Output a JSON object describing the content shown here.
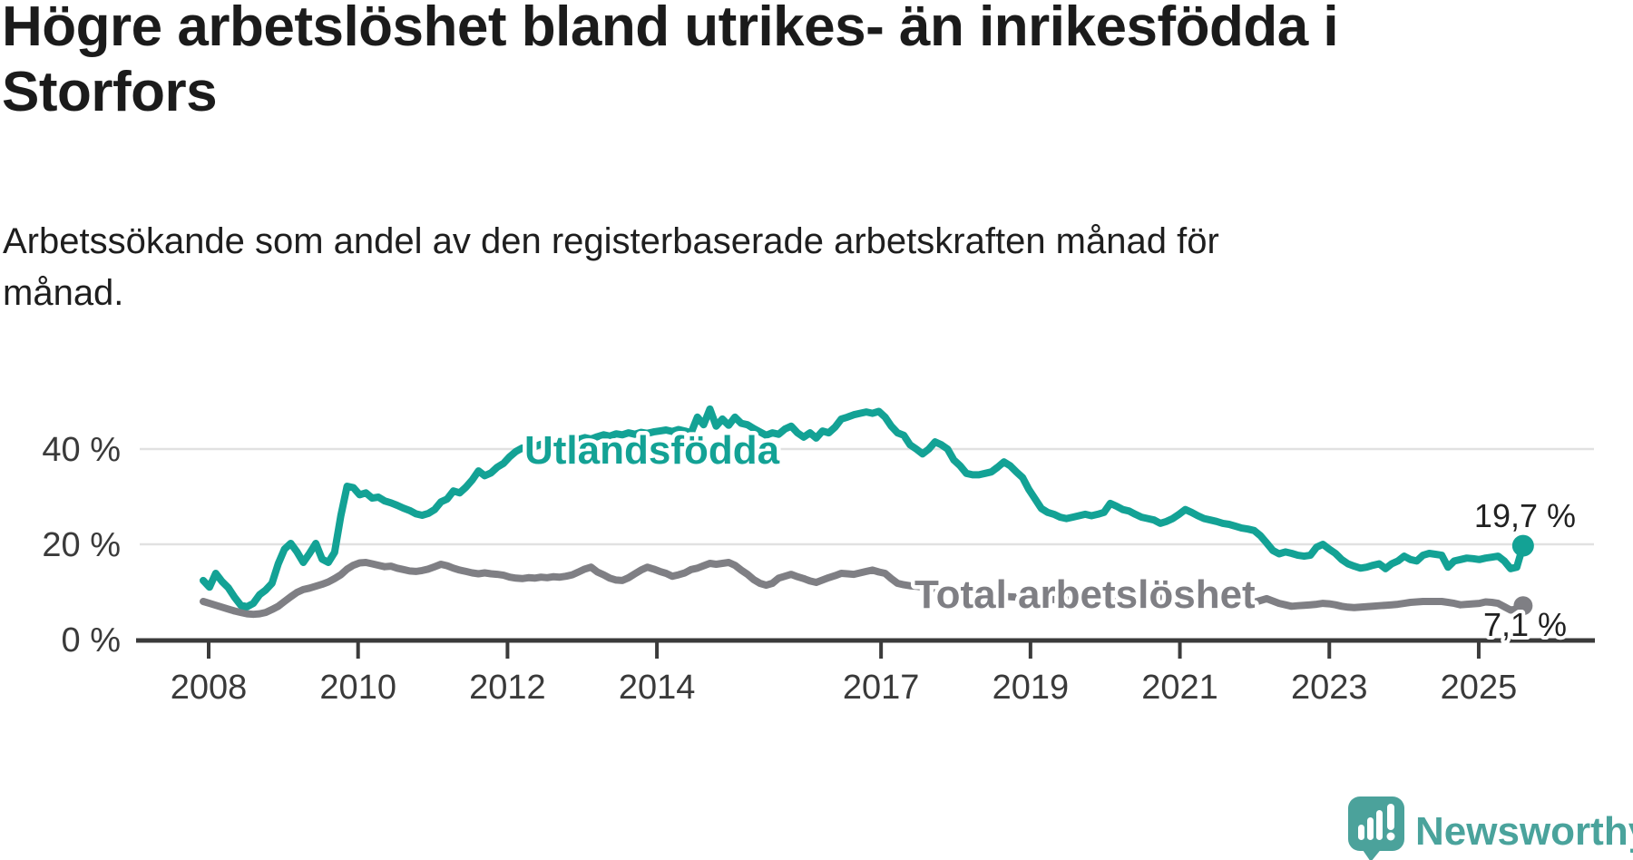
{
  "header": {
    "title": "Högre arbetslöshet bland utrikes- än inrikesfödda i Storfors",
    "subtitle": "Arbetssökande som andel av den registerbaserade arbetskraften månad för månad."
  },
  "branding": {
    "logo_text": "Newsworthy",
    "logo_icon": "bar-chart-speech-bubble-icon",
    "logo_color": "#4AA39C"
  },
  "colors": {
    "background": "#FFFFFF",
    "title_text": "#1B1B1B",
    "axis_text": "#3A3A3A",
    "axis_line": "#3B3B3B",
    "gridline": "#E1E1E1",
    "series_foreign_born": "#13A295",
    "series_total": "#7F7F84"
  },
  "chart_data": {
    "type": "line",
    "unit": "%",
    "grid": "horizontal-only",
    "period": {
      "start": "2008-01",
      "end": "2025-08",
      "frequency": "monthly"
    },
    "ylim": [
      0,
      50
    ],
    "y_axis": {
      "ticks": [
        {
          "label": "0 %",
          "value": 0
        },
        {
          "label": "20 %",
          "value": 20
        },
        {
          "label": "40 %",
          "value": 40
        }
      ]
    },
    "x_axis": {
      "ticks": [
        {
          "label": "2008",
          "year": 2008
        },
        {
          "label": "2010",
          "year": 2010
        },
        {
          "label": "2012",
          "year": 2012
        },
        {
          "label": "2014",
          "year": 2014
        },
        {
          "label": "2017",
          "year": 2017
        },
        {
          "label": "2019",
          "year": 2019
        },
        {
          "label": "2021",
          "year": 2021
        },
        {
          "label": "2023",
          "year": 2023
        },
        {
          "label": "2025",
          "year": 2025
        }
      ]
    },
    "series": [
      {
        "name": "Utlandsfödda",
        "color": "#13A295",
        "end_label": "19,7 %",
        "end_value": 19.7,
        "values": [
          12.4,
          11.0,
          13.9,
          12.2,
          10.9,
          8.9,
          7.2,
          6.9,
          7.6,
          9.4,
          10.4,
          11.8,
          15.9,
          19.0,
          20.2,
          18.4,
          16.2,
          18.1,
          20.2,
          16.9,
          16.2,
          18.3,
          26.0,
          32.2,
          31.9,
          30.4,
          30.8,
          29.7,
          29.9,
          29.1,
          28.7,
          28.2,
          27.6,
          27.1,
          26.4,
          26.1,
          26.5,
          27.3,
          28.9,
          29.5,
          31.2,
          30.8,
          32.0,
          33.5,
          35.4,
          34.4,
          35.0,
          36.2,
          37.0,
          38.4,
          39.5,
          40.2,
          40.0,
          40.5,
          41.0,
          40.6,
          41.2,
          41.6,
          41.3,
          41.8,
          42.0,
          42.4,
          42.1,
          42.6,
          43.0,
          42.7,
          43.2,
          43.0,
          43.4,
          43.1,
          43.5,
          43.3,
          43.6,
          43.8,
          44.0,
          43.7,
          44.1,
          43.8,
          43.4,
          46.7,
          45.1,
          48.4,
          44.8,
          46.3,
          45.0,
          46.7,
          45.4,
          45.1,
          44.3,
          43.6,
          42.9,
          43.4,
          43.1,
          44.2,
          44.8,
          43.4,
          42.5,
          43.4,
          42.3,
          43.8,
          43.4,
          44.6,
          46.3,
          46.7,
          47.2,
          47.5,
          47.8,
          47.5,
          47.9,
          46.7,
          44.8,
          43.4,
          42.9,
          40.9,
          40.0,
          39.0,
          40.0,
          41.5,
          40.9,
          40.0,
          37.7,
          36.5,
          34.9,
          34.6,
          34.6,
          34.9,
          35.2,
          36.2,
          37.3,
          36.5,
          35.2,
          34.0,
          31.5,
          29.5,
          27.5,
          26.7,
          26.3,
          25.7,
          25.4,
          25.7,
          26.0,
          26.3,
          26.0,
          26.3,
          26.7,
          28.6,
          28.0,
          27.3,
          27.0,
          26.3,
          25.7,
          25.4,
          25.1,
          24.4,
          24.8,
          25.4,
          26.3,
          27.3,
          26.7,
          26.0,
          25.4,
          25.1,
          24.8,
          24.4,
          24.2,
          23.8,
          23.4,
          23.2,
          22.9,
          21.8,
          20.3,
          18.7,
          18.0,
          18.4,
          18.1,
          17.7,
          17.5,
          17.7,
          19.4,
          20.0,
          19.0,
          18.1,
          16.8,
          15.9,
          15.4,
          15.0,
          15.2,
          15.6,
          15.9,
          14.9,
          15.9,
          16.5,
          17.5,
          16.8,
          16.5,
          17.7,
          18.1,
          17.9,
          17.7,
          15.2,
          16.5,
          16.8,
          17.1,
          17.0,
          16.8,
          17.1,
          17.3,
          17.5,
          16.5,
          14.9,
          15.2,
          19.7
        ]
      },
      {
        "name": "Total arbetslöshet",
        "color": "#7F7F84",
        "end_label": "7,1 %",
        "end_value": 7.1,
        "values": [
          8.0,
          7.6,
          7.2,
          6.8,
          6.4,
          6.0,
          5.7,
          5.4,
          5.3,
          5.4,
          5.7,
          6.3,
          7.0,
          8.0,
          9.0,
          9.9,
          10.5,
          10.8,
          11.2,
          11.6,
          12.1,
          12.8,
          13.6,
          14.8,
          15.6,
          16.1,
          16.2,
          15.9,
          15.6,
          15.3,
          15.4,
          15.0,
          14.7,
          14.4,
          14.3,
          14.5,
          14.8,
          15.3,
          15.8,
          15.5,
          15.0,
          14.6,
          14.3,
          14.0,
          13.8,
          14.0,
          13.8,
          13.7,
          13.5,
          13.1,
          12.9,
          12.8,
          13.0,
          12.9,
          13.1,
          13.0,
          13.2,
          13.1,
          13.3,
          13.6,
          14.2,
          14.8,
          15.2,
          14.2,
          13.6,
          12.9,
          12.5,
          12.4,
          13.0,
          13.8,
          14.6,
          15.2,
          14.8,
          14.3,
          13.9,
          13.3,
          13.6,
          14.0,
          14.7,
          15.0,
          15.5,
          16.0,
          15.8,
          16.0,
          16.2,
          15.6,
          14.6,
          13.7,
          12.6,
          11.8,
          11.4,
          11.8,
          12.9,
          13.3,
          13.7,
          13.2,
          12.8,
          12.3,
          12.0,
          12.5,
          13.0,
          13.4,
          13.9,
          13.8,
          13.7,
          14.0,
          14.3,
          14.6,
          14.2,
          13.9,
          12.8,
          11.8,
          11.5,
          11.3,
          11.2,
          11.0,
          10.8,
          10.7,
          10.5,
          10.3,
          10.1,
          9.9,
          9.7,
          9.5,
          9.4,
          9.3,
          9.2,
          9.2,
          9.1,
          9.0,
          8.9,
          8.8,
          8.7,
          8.6,
          8.5,
          8.4,
          8.4,
          8.3,
          8.3,
          8.3,
          8.4,
          8.5,
          8.5,
          8.4,
          8.4,
          8.6,
          9.0,
          9.4,
          9.6,
          9.5,
          9.3,
          9.1,
          8.9,
          8.7,
          8.5,
          8.4,
          8.4,
          8.3,
          8.2,
          8.1,
          8.0,
          7.9,
          7.8,
          7.7,
          7.6,
          7.5,
          7.5,
          7.6,
          7.8,
          8.2,
          8.6,
          8.1,
          7.6,
          7.3,
          7.0,
          7.1,
          7.2,
          7.3,
          7.4,
          7.6,
          7.5,
          7.3,
          7.0,
          6.8,
          6.7,
          6.8,
          6.9,
          7.0,
          7.1,
          7.2,
          7.3,
          7.4,
          7.6,
          7.8,
          7.9,
          8.0,
          8.0,
          8.0,
          8.0,
          7.8,
          7.6,
          7.3,
          7.4,
          7.5,
          7.6,
          7.9,
          7.8,
          7.6,
          6.9,
          6.2,
          6.4,
          7.1
        ]
      }
    ]
  }
}
